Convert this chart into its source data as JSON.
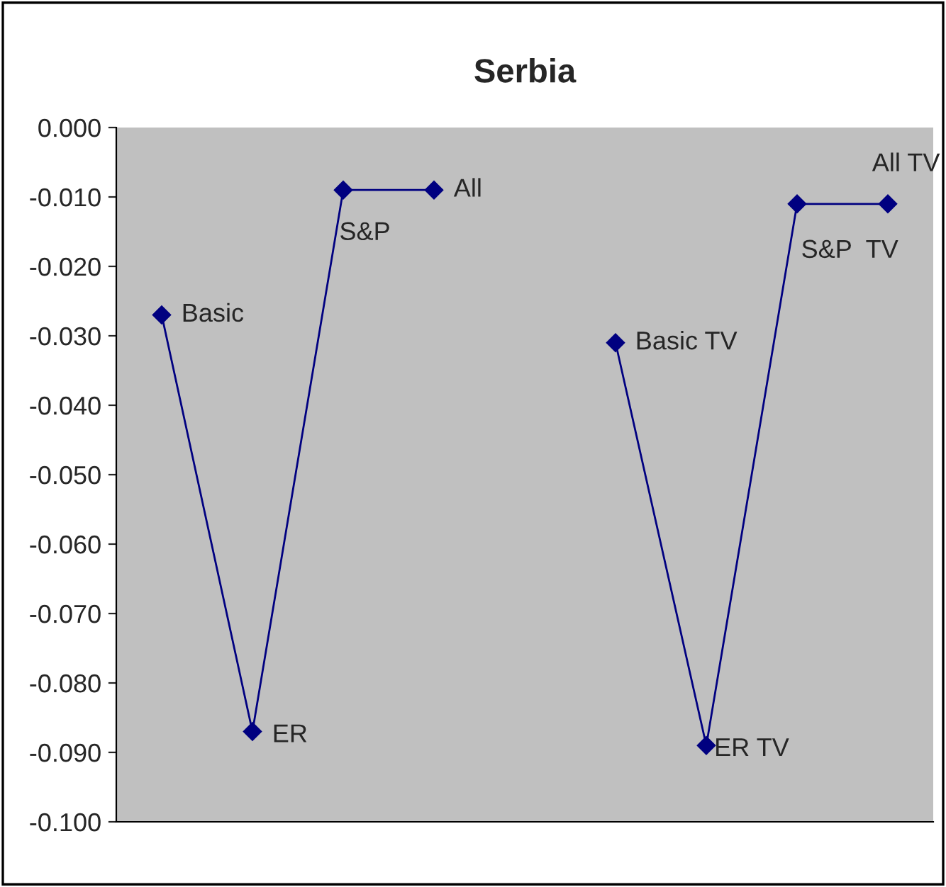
{
  "chart_data": {
    "type": "line",
    "title": "Serbia",
    "categories": [
      null,
      null,
      null,
      null,
      null,
      null,
      null,
      null,
      null
    ],
    "series": [
      {
        "color": "#000080",
        "values": [
          -0.027,
          -0.087,
          -0.009,
          -0.009,
          null,
          -0.031,
          -0.089,
          -0.011,
          -0.011
        ]
      }
    ],
    "annotations": [
      "Basic",
      "ER",
      "S&P",
      "All",
      "Basic TV",
      "ER TV",
      "S&P  TV",
      "All TV"
    ],
    "ylim": [
      -0.1,
      0.0
    ],
    "yticks": [
      {
        "value": 0.0,
        "label": "0.000"
      },
      {
        "value": -0.01,
        "label": "-0.010"
      },
      {
        "value": -0.02,
        "label": "-0.020"
      },
      {
        "value": -0.03,
        "label": "-0.030"
      },
      {
        "value": -0.04,
        "label": "-0.040"
      },
      {
        "value": -0.05,
        "label": "-0.050"
      },
      {
        "value": -0.06,
        "label": "-0.060"
      },
      {
        "value": -0.07,
        "label": "-0.070"
      },
      {
        "value": -0.08,
        "label": "-0.080"
      },
      {
        "value": -0.09,
        "label": "-0.090"
      },
      {
        "value": -0.1,
        "label": "-0.100"
      }
    ],
    "marker": "diamond",
    "grid": false,
    "legend": false,
    "tick_labels": "y"
  }
}
